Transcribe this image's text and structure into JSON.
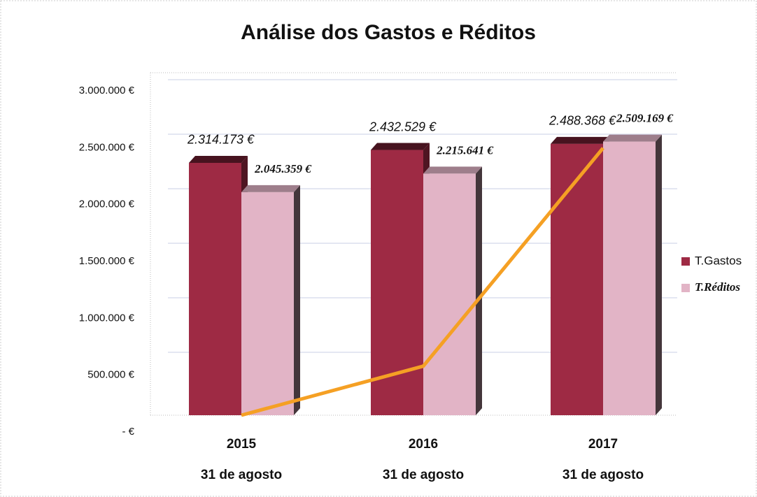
{
  "chart_data": {
    "type": "bar3d",
    "title": "Análise dos Gastos e Réditos",
    "categories": [
      "2015",
      "2016",
      "2017"
    ],
    "subcategories": [
      "31 de agosto",
      "31 de agosto",
      "31 de agosto"
    ],
    "series": [
      {
        "name": "T.Gastos",
        "color": "#9e2a44",
        "values": [
          2314173,
          2432529,
          2488368
        ],
        "value_labels": [
          "2.314.173 €",
          "2.432.529 €",
          "2.488.368 €"
        ]
      },
      {
        "name": "T.Réditos",
        "color": "#e2b4c6",
        "values": [
          2045359,
          2215641,
          2509169
        ],
        "value_labels": [
          "2.045.359 €",
          "2.215.641 €",
          "2.509.169 €"
        ]
      },
      {
        "type": "line",
        "color": "#f5a024",
        "values": [
          0,
          450000,
          2450000
        ]
      }
    ],
    "ylim": [
      0,
      3000000
    ],
    "yticks": [
      {
        "value": 0,
        "label": "-   €"
      },
      {
        "value": 500000,
        "label": "500.000 €"
      },
      {
        "value": 1000000,
        "label": "1.000.000 €"
      },
      {
        "value": 1500000,
        "label": "1.500.000 €"
      },
      {
        "value": 2000000,
        "label": "2.000.000 €"
      },
      {
        "value": 2500000,
        "label": "2.500.000 €"
      },
      {
        "value": 3000000,
        "label": "3.000.000 €"
      }
    ],
    "grid": true,
    "legend": "right"
  }
}
